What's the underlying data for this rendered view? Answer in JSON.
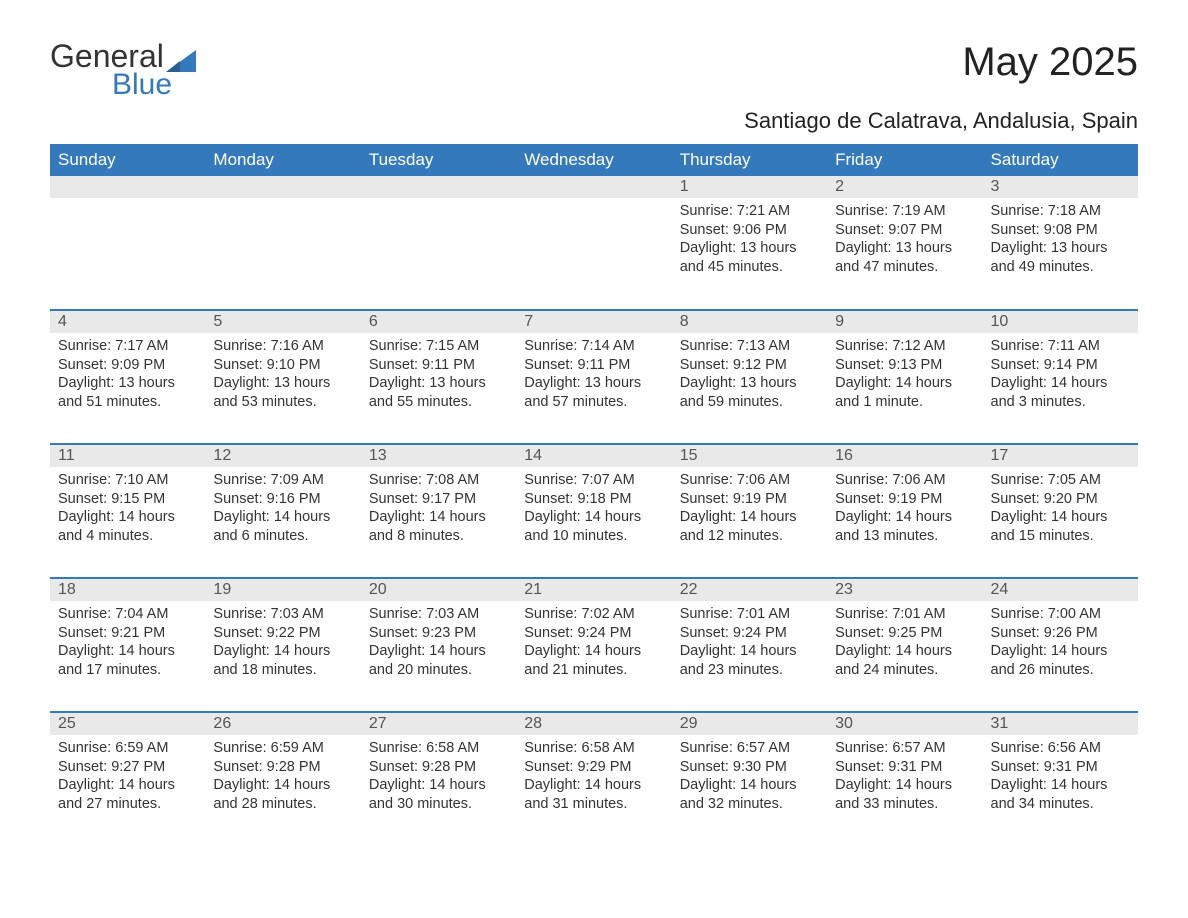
{
  "logo": {
    "text1": "General",
    "text2": "Blue"
  },
  "title": "May 2025",
  "subtitle": "Santiago de Calatrava, Andalusia, Spain",
  "colors": {
    "header_bg": "#3479bb",
    "header_text": "#ffffff",
    "daynum_bg": "#e9e9e9",
    "daynum_text": "#555555",
    "body_text": "#333333",
    "page_bg": "#ffffff",
    "border": "#3479bb"
  },
  "day_labels": [
    "Sunday",
    "Monday",
    "Tuesday",
    "Wednesday",
    "Thursday",
    "Friday",
    "Saturday"
  ],
  "labels": {
    "sunrise": "Sunrise:",
    "sunset": "Sunset:",
    "daylight": "Daylight:"
  },
  "weeks": [
    [
      null,
      null,
      null,
      null,
      {
        "n": "1",
        "sunrise": "7:21 AM",
        "sunset": "9:06 PM",
        "daylight": "13 hours and 45 minutes."
      },
      {
        "n": "2",
        "sunrise": "7:19 AM",
        "sunset": "9:07 PM",
        "daylight": "13 hours and 47 minutes."
      },
      {
        "n": "3",
        "sunrise": "7:18 AM",
        "sunset": "9:08 PM",
        "daylight": "13 hours and 49 minutes."
      }
    ],
    [
      {
        "n": "4",
        "sunrise": "7:17 AM",
        "sunset": "9:09 PM",
        "daylight": "13 hours and 51 minutes."
      },
      {
        "n": "5",
        "sunrise": "7:16 AM",
        "sunset": "9:10 PM",
        "daylight": "13 hours and 53 minutes."
      },
      {
        "n": "6",
        "sunrise": "7:15 AM",
        "sunset": "9:11 PM",
        "daylight": "13 hours and 55 minutes."
      },
      {
        "n": "7",
        "sunrise": "7:14 AM",
        "sunset": "9:11 PM",
        "daylight": "13 hours and 57 minutes."
      },
      {
        "n": "8",
        "sunrise": "7:13 AM",
        "sunset": "9:12 PM",
        "daylight": "13 hours and 59 minutes."
      },
      {
        "n": "9",
        "sunrise": "7:12 AM",
        "sunset": "9:13 PM",
        "daylight": "14 hours and 1 minute."
      },
      {
        "n": "10",
        "sunrise": "7:11 AM",
        "sunset": "9:14 PM",
        "daylight": "14 hours and 3 minutes."
      }
    ],
    [
      {
        "n": "11",
        "sunrise": "7:10 AM",
        "sunset": "9:15 PM",
        "daylight": "14 hours and 4 minutes."
      },
      {
        "n": "12",
        "sunrise": "7:09 AM",
        "sunset": "9:16 PM",
        "daylight": "14 hours and 6 minutes."
      },
      {
        "n": "13",
        "sunrise": "7:08 AM",
        "sunset": "9:17 PM",
        "daylight": "14 hours and 8 minutes."
      },
      {
        "n": "14",
        "sunrise": "7:07 AM",
        "sunset": "9:18 PM",
        "daylight": "14 hours and 10 minutes."
      },
      {
        "n": "15",
        "sunrise": "7:06 AM",
        "sunset": "9:19 PM",
        "daylight": "14 hours and 12 minutes."
      },
      {
        "n": "16",
        "sunrise": "7:06 AM",
        "sunset": "9:19 PM",
        "daylight": "14 hours and 13 minutes."
      },
      {
        "n": "17",
        "sunrise": "7:05 AM",
        "sunset": "9:20 PM",
        "daylight": "14 hours and 15 minutes."
      }
    ],
    [
      {
        "n": "18",
        "sunrise": "7:04 AM",
        "sunset": "9:21 PM",
        "daylight": "14 hours and 17 minutes."
      },
      {
        "n": "19",
        "sunrise": "7:03 AM",
        "sunset": "9:22 PM",
        "daylight": "14 hours and 18 minutes."
      },
      {
        "n": "20",
        "sunrise": "7:03 AM",
        "sunset": "9:23 PM",
        "daylight": "14 hours and 20 minutes."
      },
      {
        "n": "21",
        "sunrise": "7:02 AM",
        "sunset": "9:24 PM",
        "daylight": "14 hours and 21 minutes."
      },
      {
        "n": "22",
        "sunrise": "7:01 AM",
        "sunset": "9:24 PM",
        "daylight": "14 hours and 23 minutes."
      },
      {
        "n": "23",
        "sunrise": "7:01 AM",
        "sunset": "9:25 PM",
        "daylight": "14 hours and 24 minutes."
      },
      {
        "n": "24",
        "sunrise": "7:00 AM",
        "sunset": "9:26 PM",
        "daylight": "14 hours and 26 minutes."
      }
    ],
    [
      {
        "n": "25",
        "sunrise": "6:59 AM",
        "sunset": "9:27 PM",
        "daylight": "14 hours and 27 minutes."
      },
      {
        "n": "26",
        "sunrise": "6:59 AM",
        "sunset": "9:28 PM",
        "daylight": "14 hours and 28 minutes."
      },
      {
        "n": "27",
        "sunrise": "6:58 AM",
        "sunset": "9:28 PM",
        "daylight": "14 hours and 30 minutes."
      },
      {
        "n": "28",
        "sunrise": "6:58 AM",
        "sunset": "9:29 PM",
        "daylight": "14 hours and 31 minutes."
      },
      {
        "n": "29",
        "sunrise": "6:57 AM",
        "sunset": "9:30 PM",
        "daylight": "14 hours and 32 minutes."
      },
      {
        "n": "30",
        "sunrise": "6:57 AM",
        "sunset": "9:31 PM",
        "daylight": "14 hours and 33 minutes."
      },
      {
        "n": "31",
        "sunrise": "6:56 AM",
        "sunset": "9:31 PM",
        "daylight": "14 hours and 34 minutes."
      }
    ]
  ]
}
